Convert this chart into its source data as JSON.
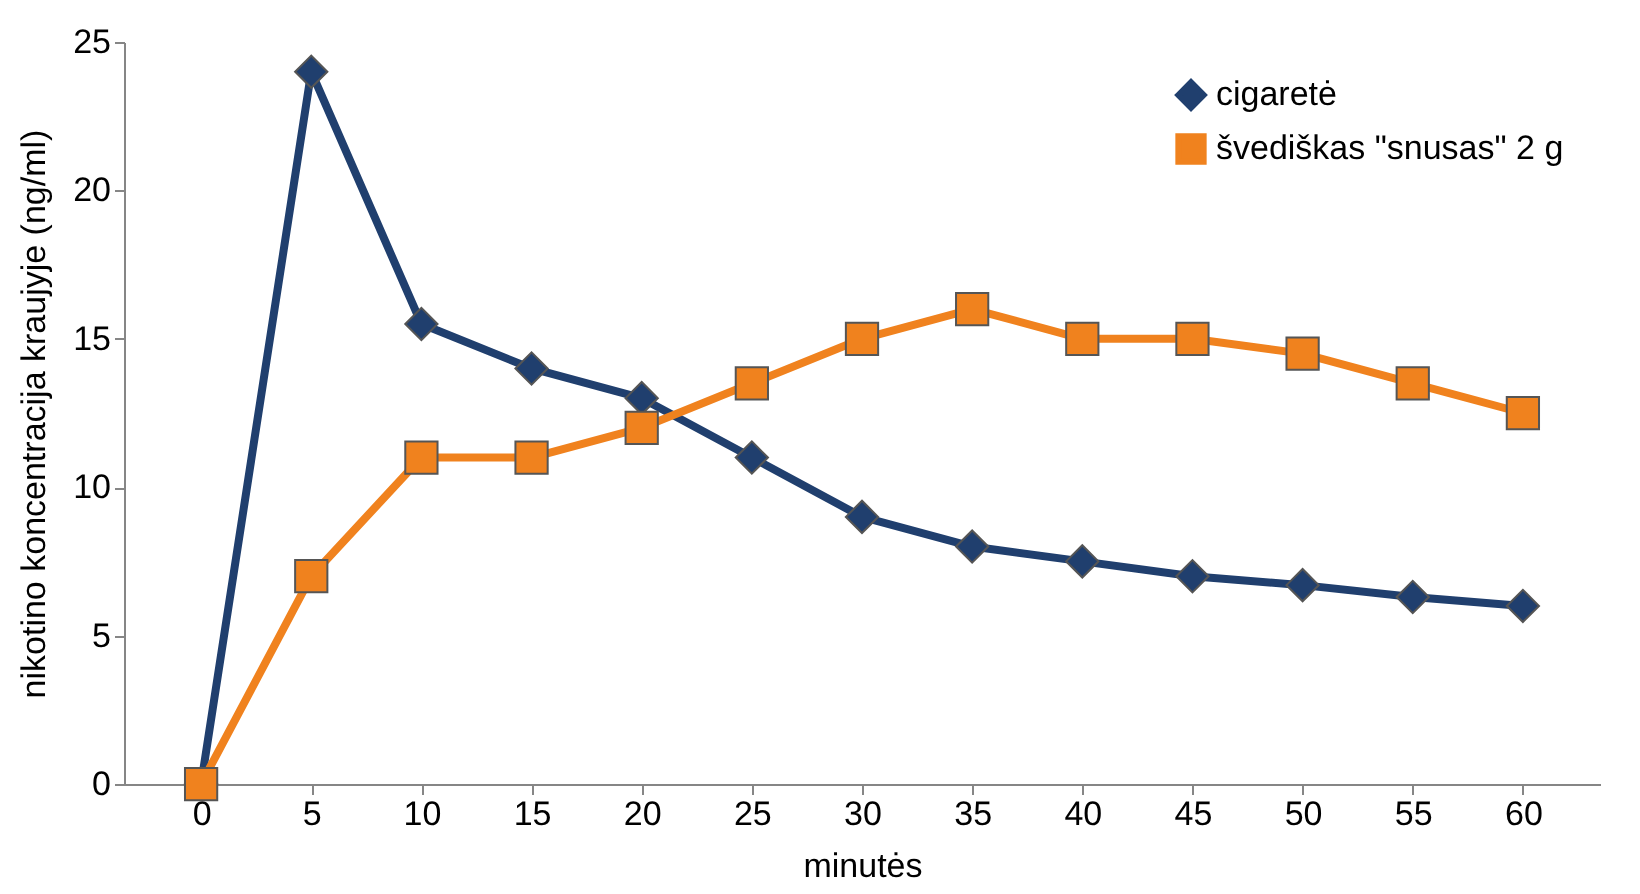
{
  "chart_data": {
    "type": "line",
    "xlabel": "minutės",
    "ylabel": "nikotino koncentracija kraujyje (ng/ml)",
    "categories": [
      "0",
      "5",
      "10",
      "15",
      "20",
      "25",
      "30",
      "35",
      "40",
      "45",
      "50",
      "55",
      "60"
    ],
    "ylim": [
      0,
      25
    ],
    "yticks": [
      0,
      5,
      10,
      15,
      20,
      25
    ],
    "grid": false,
    "legend": "top right",
    "line_style": "solid",
    "series": [
      {
        "name": "cigaretė",
        "color": "#203f6e",
        "marker": "diamond",
        "values": [
          0,
          24,
          15.5,
          14,
          13,
          11,
          9,
          8,
          7.5,
          7,
          6.7,
          6.3,
          6
        ]
      },
      {
        "name": "švediškas \"snusas\" 2 g",
        "color": "#f0821e",
        "marker": "square",
        "values": [
          0,
          7,
          11,
          11,
          12,
          13.5,
          15,
          16,
          15,
          15,
          14.5,
          13.5,
          12.5
        ]
      }
    ]
  }
}
